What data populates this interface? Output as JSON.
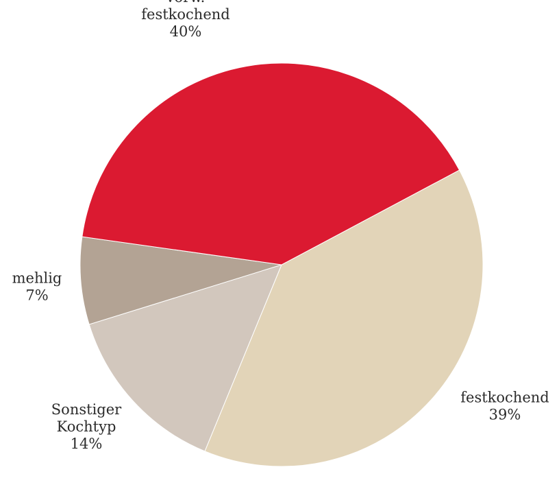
{
  "chart_data": {
    "type": "pie",
    "title": "",
    "slices": [
      {
        "label_lines": [
          "festkochend"
        ],
        "value_label": "39%",
        "value": 39,
        "color": "#e2d4b8"
      },
      {
        "label_lines": [
          "Sonstiger",
          "Kochtyp"
        ],
        "value_label": "14%",
        "value": 14,
        "color": "#d2c7bd"
      },
      {
        "label_lines": [
          "mehlig"
        ],
        "value_label": "7%",
        "value": 7,
        "color": "#b3a394"
      },
      {
        "label_lines": [
          "vorw.",
          "festkochend"
        ],
        "value_label": "40%",
        "value": 40,
        "color": "#db1a31"
      }
    ],
    "start_angle_deg": 62,
    "direction": "clockwise",
    "legend": "none"
  }
}
